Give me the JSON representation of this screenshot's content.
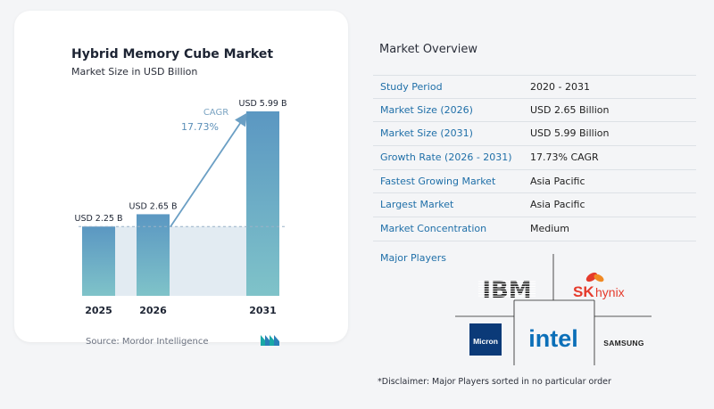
{
  "chart_card": {
    "title": "Hybrid Memory Cube Market",
    "subtitle": "Market Size in USD Billion",
    "source": "Source:  Mordor Intelligence",
    "cagr_label": "CAGR",
    "cagr_value": "17.73%"
  },
  "chart_data": {
    "type": "bar",
    "title": "Hybrid Memory Cube Market",
    "subtitle": "Market Size in USD Billion",
    "categories": [
      "2025",
      "2026",
      "2031"
    ],
    "values": [
      2.25,
      2.65,
      5.99
    ],
    "data_labels": [
      "USD 2.25 B",
      "USD 2.65 B",
      "USD 5.99 B"
    ],
    "ylim": [
      0,
      5.99
    ],
    "grid": false,
    "colors": {
      "bar_top": "#5b97c2",
      "bar_bottom": "#7fc3c9",
      "area": "#e2ebf2",
      "arrow": "#6b9fc4",
      "dashed": "#9ab2c7"
    }
  },
  "overview": {
    "title": "Market Overview",
    "rows": [
      {
        "label": "Study Period",
        "value": "2020 - 2031"
      },
      {
        "label": "Market Size (2026)",
        "value": "USD 2.65 Billion"
      },
      {
        "label": "Market Size (2031)",
        "value": "USD 5.99 Billion"
      },
      {
        "label": "Growth Rate (2026 - 2031)",
        "value": "17.73% CAGR"
      },
      {
        "label": "Fastest Growing Market",
        "value": "Asia Pacific"
      },
      {
        "label": "Largest Market",
        "value": "Asia Pacific"
      },
      {
        "label": "Market Concentration",
        "value": "Medium"
      }
    ]
  },
  "players": {
    "title": "Major Players",
    "logos": [
      {
        "name": "IBM",
        "text": "IBM"
      },
      {
        "name": "SK hynix",
        "text_sk": "SK",
        "text_hynix": "hynix"
      },
      {
        "name": "Micron",
        "text": "Micron"
      },
      {
        "name": "Intel",
        "text": "intel"
      },
      {
        "name": "Samsung",
        "text": "SAMSUNG"
      }
    ]
  },
  "disclaimer": "*Disclaimer: Major Players sorted in no particular order",
  "colors": {
    "accent": "#1f6fa8",
    "ibm": "#1f1f1f",
    "sk_red": "#e53b2c",
    "sk_orange": "#f08a24",
    "micron": "#0b3a78",
    "intel": "#0b6fb8",
    "samsung": "#1f1f1f"
  }
}
